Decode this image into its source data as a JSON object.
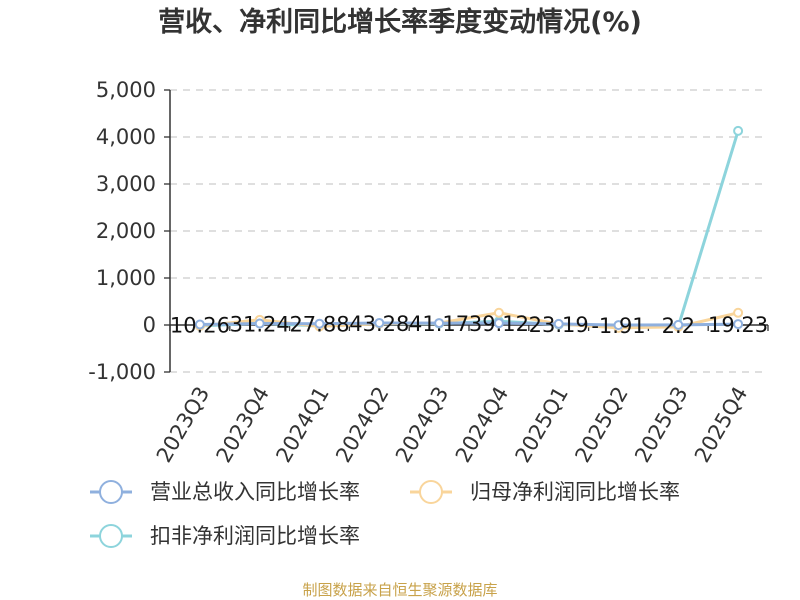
{
  "chart_data": {
    "type": "line",
    "title": "营收、净利同比增长率季度变动情况(%)",
    "categories": [
      "2023Q3",
      "2023Q4",
      "2024Q1",
      "2024Q2",
      "2024Q3",
      "2024Q4",
      "2025Q1",
      "2025Q2",
      "2025Q3",
      "2025Q4"
    ],
    "ylim": [
      -1000,
      5000
    ],
    "yticks": [
      -1000,
      0,
      1000,
      2000,
      3000,
      4000,
      5000
    ],
    "ytick_labels": [
      "-1,000",
      "0",
      "1,000",
      "2,000",
      "3,000",
      "4,000",
      "5,000"
    ],
    "grid": true,
    "legend_position": "bottom",
    "series": [
      {
        "name": "营业总收入同比增长率",
        "color": "#8fb0de",
        "values": [
          10.26,
          31.24,
          27.88,
          43.28,
          41.17,
          39.12,
          23.19,
          -1.91,
          2.2,
          19.23
        ],
        "labels": [
          "10.26",
          "31.24",
          "27.88",
          "43.28",
          "41.17",
          "39.12",
          "23.19",
          "-1.91",
          "2.2",
          "19.23"
        ]
      },
      {
        "name": "归母净利润同比增长率",
        "color": "#f9d59b",
        "values": [
          -20,
          110,
          -30,
          30,
          40,
          260,
          20,
          -60,
          -40,
          260
        ]
      },
      {
        "name": "扣非净利润同比增长率",
        "color": "#8dd4dc",
        "values": [
          -20,
          40,
          -20,
          30,
          30,
          80,
          10,
          -20,
          -30,
          4130
        ]
      }
    ],
    "source": "制图数据来自恒生聚源数据库"
  }
}
